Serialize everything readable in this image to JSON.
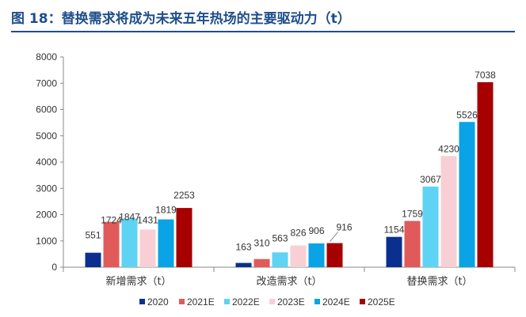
{
  "title": "图 18：替换需求将成为未来五年热场的主要驱动力（t）",
  "chart_data": {
    "type": "bar",
    "title": "图 18：替换需求将成为未来五年热场的主要驱动力（t）",
    "categories": [
      "新增需求（t）",
      "改造需求（t）",
      "替换需求（t）"
    ],
    "series": [
      {
        "name": "2020",
        "color": "#0b2f8f",
        "values": [
          551,
          163,
          1154
        ]
      },
      {
        "name": "2021E",
        "color": "#e05a5a",
        "values": [
          1724,
          310,
          1759
        ]
      },
      {
        "name": "2022E",
        "color": "#5fd3f3",
        "values": [
          1847,
          563,
          3067
        ]
      },
      {
        "name": "2023E",
        "color": "#f7cfd4",
        "values": [
          1431,
          826,
          4230
        ]
      },
      {
        "name": "2024E",
        "color": "#0aa3e6",
        "values": [
          1819,
          906,
          5526
        ]
      },
      {
        "name": "2025E",
        "color": "#a60000",
        "values": [
          2253,
          916,
          7038
        ]
      }
    ],
    "ylim": [
      0,
      8000
    ],
    "yticks": [
      0,
      1000,
      2000,
      3000,
      4000,
      5000,
      6000,
      7000,
      8000
    ],
    "legend": "bottom",
    "grid": false
  }
}
